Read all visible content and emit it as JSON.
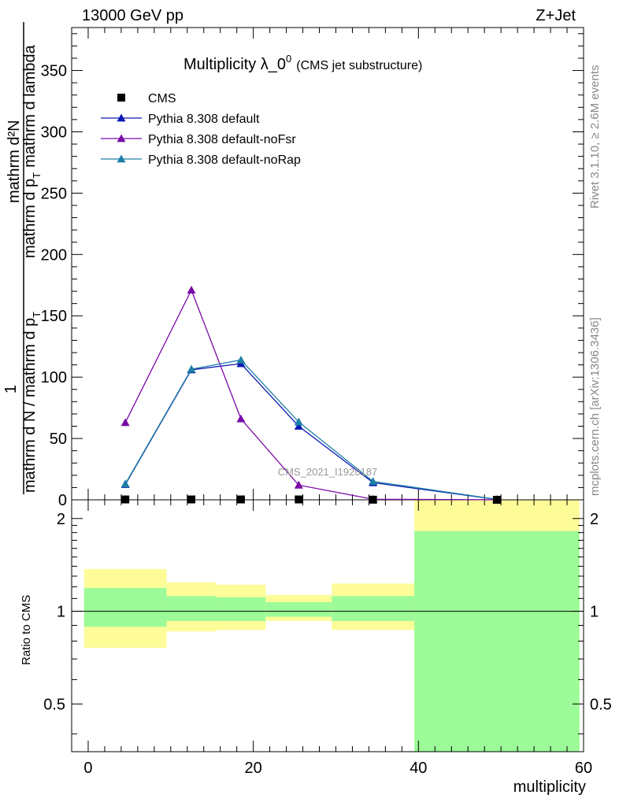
{
  "header": {
    "left": "13000 GeV pp",
    "right": "Z+Jet",
    "side_top": "Rivet 3.1.10, ≥ 2.6M events",
    "side_bottom": "mcplots.cern.ch [arXiv:1306.3436]",
    "watermark": "CMS_2021_I1920187"
  },
  "chart_data": {
    "type": "line",
    "title_main": "Multiplicity λ_0",
    "title_sup": "0",
    "title_sub": "(CMS jet substructure)",
    "xlabel": "multiplicity",
    "ylabel": "mathrm d N / mathrm d p_T mathrm d lambda",
    "ylabel_denominator": "mathrm d N / mathrm d p",
    "ylabel_prefix": "1",
    "ylabel_numerator": "mathrm d²N",
    "ylabel_numerator_tail": "mathrm d p",
    "ylabel_numerator_end": "mathrm d lambda",
    "ylabel_sub_t": "T",
    "ratio_ylabel": "Ratio to CMS",
    "xlim": [
      -2,
      60
    ],
    "ylim": [
      0,
      385
    ],
    "ratio_ylim": [
      0.35,
      2.3
    ],
    "xticks": [
      0,
      20,
      40,
      60
    ],
    "yticks": [
      0,
      50,
      100,
      150,
      200,
      250,
      300,
      350
    ],
    "ratio_yticks": [
      0.5,
      1,
      2
    ],
    "legend": [
      "CMS",
      "Pythia 8.308 default",
      "Pythia 8.308 default-noFsr",
      "Pythia 8.308 default-noRap"
    ],
    "legend_position": "top-left",
    "colors": {
      "cms": "#000000",
      "default": "#0b18b5",
      "noFsr": "#7a0aa8",
      "noRap": "#1d7fa5",
      "band_inner": "#9cfb98",
      "band_outer": "#fdfc99"
    },
    "cms": {
      "x": [
        4.5,
        12.5,
        18.5,
        25.5,
        34.5,
        49.5
      ],
      "y": [
        0.3,
        0.3,
        0.3,
        0.3,
        0.1,
        0.02
      ]
    },
    "series": [
      {
        "name": "Pythia 8.308 default",
        "x": [
          4.5,
          12.5,
          18.5,
          25.5,
          34.5,
          49.5
        ],
        "y": [
          12.5,
          106,
          111,
          60,
          14,
          0.3
        ]
      },
      {
        "name": "Pythia 8.308 default-noFsr",
        "x": [
          4.5,
          12.5,
          18.5,
          25.5,
          34.5,
          49.5
        ],
        "y": [
          63,
          171,
          66,
          12,
          0.5,
          0.05
        ]
      },
      {
        "name": "Pythia 8.308 default-noRap",
        "x": [
          4.5,
          12.5,
          18.5,
          25.5,
          34.5,
          49.5
        ],
        "y": [
          13,
          106.5,
          114,
          63.5,
          15,
          0.4
        ]
      }
    ],
    "ratio_bands": [
      {
        "x0": -0.5,
        "x1": 9.5,
        "outer": [
          0.76,
          1.37
        ],
        "inner": [
          0.89,
          1.19
        ]
      },
      {
        "x0": 9.5,
        "x1": 15.5,
        "outer": [
          0.86,
          1.24
        ],
        "inner": [
          0.93,
          1.12
        ]
      },
      {
        "x0": 15.5,
        "x1": 21.5,
        "outer": [
          0.87,
          1.22
        ],
        "inner": [
          0.93,
          1.11
        ]
      },
      {
        "x0": 21.5,
        "x1": 29.5,
        "outer": [
          0.93,
          1.13
        ],
        "inner": [
          0.96,
          1.07
        ]
      },
      {
        "x0": 29.5,
        "x1": 39.5,
        "outer": [
          0.87,
          1.23
        ],
        "inner": [
          0.93,
          1.12
        ]
      },
      {
        "x0": 39.5,
        "x1": 59.5,
        "outer": [
          0.35,
          2.3
        ],
        "inner": [
          0.35,
          1.82
        ]
      }
    ]
  }
}
